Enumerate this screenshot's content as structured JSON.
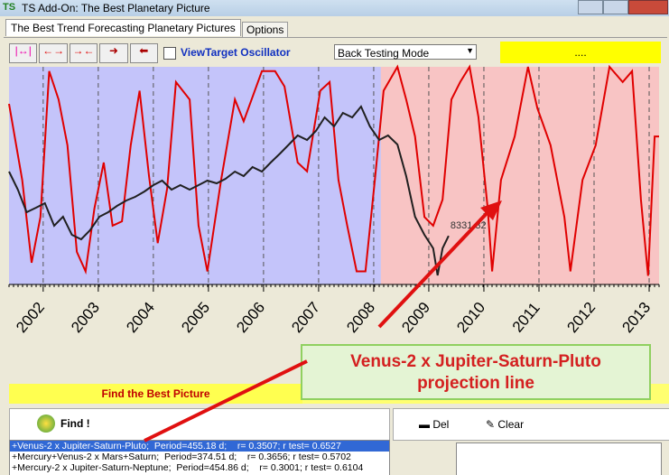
{
  "window": {
    "title": "TS Add-On: The Best Planetary Picture"
  },
  "tabs": [
    "The Best Trend Forecasting Planetary Pictures",
    "Options"
  ],
  "toolbar": {
    "checkbox_label": "ViewTarget Oscillator",
    "mode": "Back Testing Mode",
    "status": "...."
  },
  "chart_data": {
    "type": "line",
    "xlim": [
      2001.38,
      2013.18
    ],
    "xticks": [
      2002,
      2003,
      2004,
      2005,
      2006,
      2007,
      2008,
      2009,
      2010,
      2011,
      2012,
      2013
    ],
    "ylim": [
      6140,
      15956
    ],
    "y2lim": [
      0,
      100
    ],
    "grid": true,
    "backtest_start": 2008.13,
    "train_color": "#c4c4fa",
    "test_color": "#f8c4c4",
    "series": [
      {
        "color": "#e00000",
        "axis": "y2",
        "x": [
          2001.38,
          2001.62,
          2001.79,
          2001.95,
          2002.11,
          2002.28,
          2002.44,
          2002.61,
          2002.77,
          2002.93,
          2003.1,
          2003.26,
          2003.43,
          2003.59,
          2003.75,
          2003.92,
          2004.08,
          2004.25,
          2004.41,
          2004.66,
          2004.82,
          2004.98,
          2005.23,
          2005.48,
          2005.64,
          2005.97,
          2006.21,
          2006.38,
          2006.62,
          2006.79,
          2007.03,
          2007.2,
          2007.36,
          2007.52,
          2007.69,
          2007.85,
          2008.02,
          2008.18,
          2008.43,
          2008.59,
          2008.75,
          2008.92,
          2009.08,
          2009.25,
          2009.41,
          2009.57,
          2009.74,
          2009.9,
          2010.07,
          2010.15,
          2010.31,
          2010.56,
          2010.8,
          2010.97,
          2011.21,
          2011.46,
          2011.57,
          2011.79,
          2012.03,
          2012.28,
          2012.52,
          2012.69,
          2012.85,
          2012.98,
          2013.1,
          2013.18
        ],
        "values": [
          83,
          48,
          10,
          31,
          98,
          85,
          64,
          15,
          6,
          35,
          56,
          27,
          29,
          64,
          89,
          50,
          19,
          44,
          93,
          85,
          27,
          6,
          48,
          85,
          75,
          98,
          98,
          91,
          56,
          52,
          89,
          93,
          48,
          27,
          6,
          6,
          48,
          89,
          100,
          85,
          68,
          31,
          27,
          39,
          85,
          93,
          100,
          77,
          35,
          6,
          48,
          68,
          100,
          81,
          64,
          31,
          6,
          48,
          64,
          100,
          93,
          98,
          39,
          4,
          68,
          68
        ]
      },
      {
        "color": "#202020",
        "x": [
          2001.38,
          2001.54,
          2001.7,
          2001.87,
          2002.03,
          2002.2,
          2002.36,
          2002.52,
          2002.69,
          2002.85,
          2003.02,
          2003.18,
          2003.34,
          2003.51,
          2003.67,
          2003.84,
          2004.0,
          2004.16,
          2004.33,
          2004.49,
          2004.66,
          2004.82,
          2004.98,
          2005.15,
          2005.31,
          2005.48,
          2005.64,
          2005.8,
          2005.97,
          2006.13,
          2006.3,
          2006.46,
          2006.62,
          2006.79,
          2006.95,
          2007.11,
          2007.28,
          2007.44,
          2007.61,
          2007.77,
          2007.93,
          2008.1,
          2008.26,
          2008.43,
          2008.59,
          2008.75,
          2008.92,
          2009.08,
          2009.16,
          2009.25,
          2009.36
        ],
        "values": [
          11231,
          10417,
          9399,
          9602,
          9806,
          8788,
          9195,
          8380,
          8177,
          8584,
          9195,
          9399,
          9684,
          9928,
          10091,
          10335,
          10620,
          10824,
          10417,
          10620,
          10417,
          10620,
          10824,
          10702,
          10906,
          11231,
          11028,
          11435,
          11231,
          11639,
          12046,
          12453,
          12861,
          12657,
          13064,
          13675,
          13268,
          13879,
          13675,
          14164,
          13268,
          12657,
          12861,
          12453,
          11028,
          9195,
          8380,
          7769,
          6547,
          7769,
          8331.32
        ]
      }
    ]
  },
  "annotation": {
    "lines": [
      "Venus-2 x Jupiter-Saturn-Pluto",
      "projection line"
    ]
  },
  "panel": {
    "header": "Find the Best Picture",
    "find": "Find !",
    "del": "Del",
    "clear": "Clear"
  },
  "results": [
    "+Venus-2 x Jupiter-Saturn-Pluto;  Period=455.18 d;    r= 0.3507; r test= 0.6527",
    "+Mercury+Venus-2 x Mars+Saturn;  Period=374.51 d;    r= 0.3656; r test= 0.5702",
    "+Mercury-2 x Jupiter-Saturn-Neptune;  Period=454.86 d;    r= 0.3001; r test= 0.6104"
  ]
}
